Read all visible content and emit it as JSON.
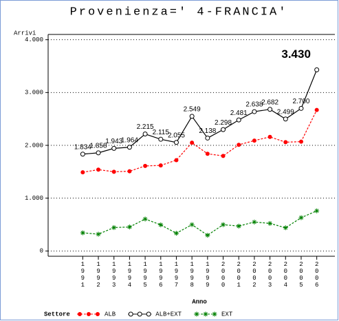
{
  "chart_data": {
    "type": "line",
    "title": "Provenienza=' 4-FRANCIA'",
    "y_label": "Arrivi",
    "x_label": "Anno",
    "legend_title": "Settore",
    "categories": [
      "1991",
      "1992",
      "1993",
      "1994",
      "1995",
      "1996",
      "1997",
      "1998",
      "1999",
      "2000",
      "2001",
      "2002",
      "2003",
      "2004",
      "2005",
      "2006"
    ],
    "series": [
      {
        "name": "ALB",
        "color": "#ff0000",
        "marker": "dot",
        "dash": true,
        "values": [
          1490,
          1540,
          1500,
          1510,
          1610,
          1620,
          1720,
          2050,
          1840,
          1800,
          2010,
          2090,
          2160,
          2060,
          2070,
          2670
        ]
      },
      {
        "name": "ALB+EXT",
        "color": "#000000",
        "marker": "circle",
        "dash": false,
        "values": [
          1834,
          1858,
          1943,
          1964,
          2215,
          2115,
          2055,
          2549,
          2138,
          2298,
          2481,
          2638,
          2682,
          2499,
          2700,
          3430
        ],
        "value_labels": [
          "1.834",
          "1.858",
          "1.943",
          "1.964",
          "2.215",
          "2.115",
          "2.055",
          "2.549",
          "2.138",
          "2.298",
          "2.481",
          "2.638",
          "2.682",
          "2.499",
          "2.700",
          "3.430"
        ]
      },
      {
        "name": "EXT",
        "color": "#008000",
        "marker": "star",
        "dash": true,
        "values": [
          344,
          318,
          443,
          454,
          605,
          495,
          335,
          499,
          298,
          498,
          471,
          548,
          522,
          439,
          630,
          760
        ]
      }
    ],
    "ylim": [
      -100,
      4100
    ],
    "yticks": [
      0,
      {
        "value": 1000,
        "label": "1.000"
      },
      {
        "value": 2000,
        "label": "2.000"
      },
      {
        "value": 3000,
        "label": "3.000"
      },
      {
        "value": 4000,
        "label": "4.000"
      }
    ],
    "grid": true
  }
}
